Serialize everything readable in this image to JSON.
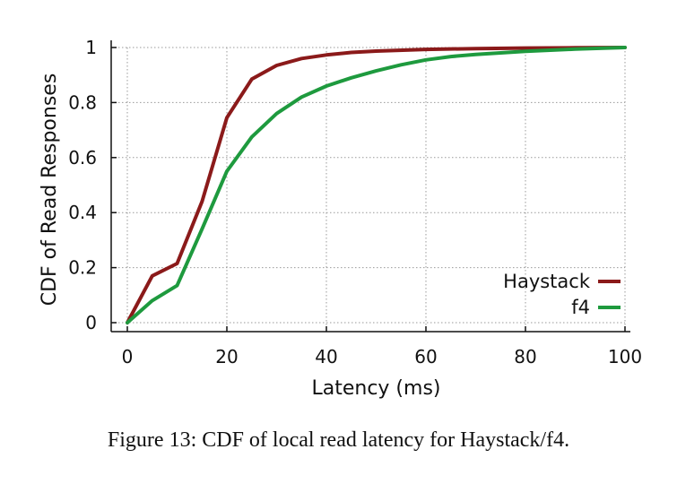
{
  "caption": "Figure 13: CDF of local read latency for Haystack/f4.",
  "chart_data": {
    "type": "line",
    "xlabel": "Latency (ms)",
    "ylabel": "CDF of Read Responses",
    "xlim": [
      0,
      100
    ],
    "ylim": [
      0,
      1
    ],
    "xticks": [
      0,
      20,
      40,
      60,
      80,
      100
    ],
    "yticks": [
      0,
      0.2,
      0.4,
      0.6,
      0.8,
      1
    ],
    "ytick_labels": [
      "0",
      "0.2",
      "0.4",
      "0.6",
      "0.8",
      "1"
    ],
    "grid": true,
    "legend_position": "bottom-right",
    "series": [
      {
        "name": "Haystack",
        "color": "#8b1a1a",
        "x": [
          0,
          5,
          10,
          15,
          20,
          25,
          30,
          35,
          40,
          45,
          50,
          60,
          70,
          80,
          90,
          100
        ],
        "y": [
          0,
          0.17,
          0.215,
          0.44,
          0.745,
          0.885,
          0.935,
          0.96,
          0.973,
          0.982,
          0.987,
          0.993,
          0.996,
          0.998,
          0.999,
          1.0
        ]
      },
      {
        "name": "f4",
        "color": "#1e9a3e",
        "x": [
          0,
          5,
          10,
          15,
          20,
          25,
          30,
          35,
          40,
          45,
          50,
          55,
          60,
          65,
          70,
          80,
          90,
          100
        ],
        "y": [
          0,
          0.08,
          0.135,
          0.34,
          0.55,
          0.675,
          0.76,
          0.82,
          0.86,
          0.89,
          0.915,
          0.937,
          0.955,
          0.967,
          0.975,
          0.986,
          0.994,
          1.0
        ]
      }
    ]
  }
}
